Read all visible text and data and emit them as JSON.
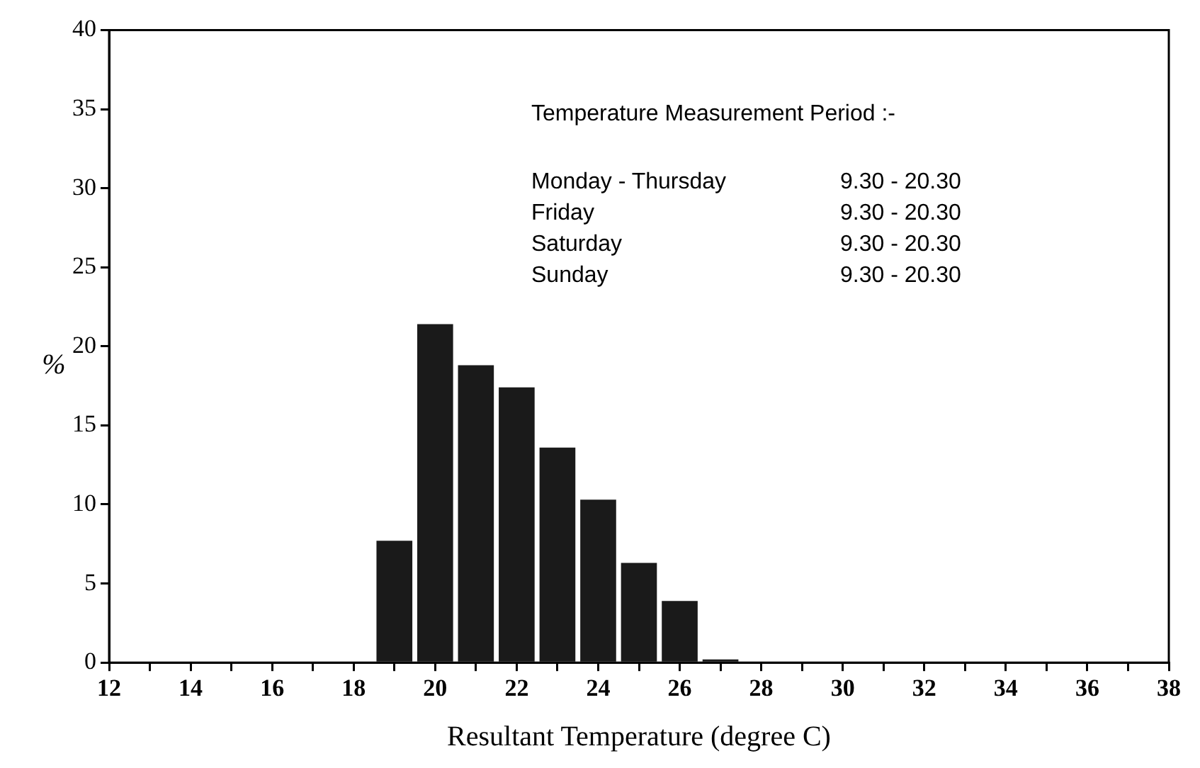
{
  "chart_data": {
    "type": "histogram",
    "xlabel": "Resultant Temperature (degree C)",
    "ylabel": "%",
    "bins": [
      18.5,
      19.5,
      20.5,
      21.5,
      22.5,
      23.5,
      24.5,
      25.5,
      26.5,
      27.5
    ],
    "values": [
      7.7,
      21.4,
      18.8,
      17.4,
      13.6,
      10.3,
      6.3,
      3.9,
      0.2
    ],
    "color": "#1a1a1a",
    "xlim": [
      12,
      38
    ],
    "xticks": [
      12,
      {
        "value": 13,
        "label": null
      },
      14,
      {
        "value": 15,
        "label": null
      },
      16,
      {
        "value": 17,
        "label": null
      },
      18,
      {
        "value": 19,
        "label": null
      },
      20,
      {
        "value": 21,
        "label": null
      },
      22,
      {
        "value": 23,
        "label": null
      },
      24,
      {
        "value": 25,
        "label": null
      },
      26,
      {
        "value": 27,
        "label": null
      },
      28,
      {
        "value": 29,
        "label": null
      },
      30,
      {
        "value": 31,
        "label": null
      },
      32,
      {
        "value": 33,
        "label": null
      },
      34,
      {
        "value": 35,
        "label": null
      },
      36,
      {
        "value": 37,
        "label": null
      },
      38
    ],
    "ylim": [
      0,
      40
    ],
    "yticks": [
      0,
      5,
      10,
      15,
      20,
      25,
      30,
      35,
      40
    ],
    "grid": false,
    "legend": false,
    "annotations": [
      "Temperature Measurement Period :-",
      "Monday - Thursday",
      "9.30 - 20.30",
      "Friday",
      "9.30 - 20.30",
      "Saturday",
      "9.30 - 20.30",
      "Sunday",
      "9.30 - 20.30"
    ]
  }
}
